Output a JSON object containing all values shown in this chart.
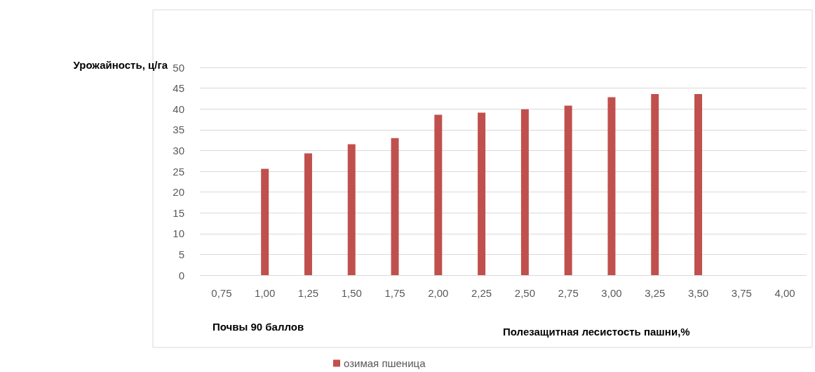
{
  "chart_data": {
    "type": "bar",
    "ylabel": "Урожайность, ц/га",
    "xlabel": "Полезащитная лесистость пашни,%",
    "annotations": [
      "Почвы 90 баллов"
    ],
    "categories": [
      "0,75",
      "1,00",
      "1,25",
      "1,50",
      "1,75",
      "2,00",
      "2,25",
      "2,50",
      "2,75",
      "3,00",
      "3,25",
      "3,50",
      "3,75",
      "4,00"
    ],
    "series": [
      {
        "name": "озимая пшеница",
        "color": "#c0504d",
        "values": [
          null,
          25.6,
          29.3,
          31.5,
          33.0,
          38.6,
          39.1,
          39.9,
          40.8,
          42.8,
          43.6,
          43.6,
          null,
          null
        ]
      }
    ],
    "ylim": [
      0,
      50
    ],
    "yticks": [
      0,
      5,
      10,
      15,
      20,
      25,
      30,
      35,
      40,
      45,
      50
    ],
    "grid": "y",
    "legend": "bottom"
  }
}
